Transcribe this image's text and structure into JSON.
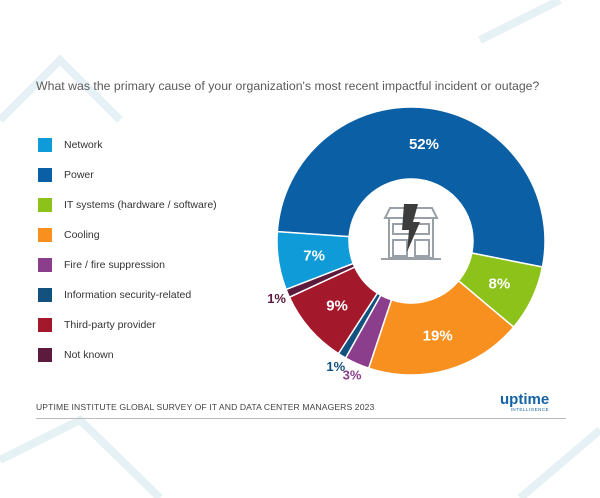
{
  "chart_data": {
    "type": "pie",
    "title": "What was the primary cause of your organization's most recent impactful incident or outage?",
    "categories": [
      "Power",
      "IT systems (hardware / software)",
      "Cooling",
      "Fire / fire suppression",
      "Information security-related",
      "Third-party provider",
      "Not known",
      "Network"
    ],
    "values": [
      52,
      8,
      19,
      3,
      1,
      9,
      1,
      7
    ],
    "labels": [
      "52%",
      "8%",
      "19%",
      "3%",
      "1%",
      "9%",
      "1%",
      "7%"
    ],
    "colors": [
      "#0b5fa5",
      "#8cc21a",
      "#f7901e",
      "#8a3e8c",
      "#13517f",
      "#a3182b",
      "#5c1a3c",
      "#0e9bd8"
    ],
    "legend": [
      {
        "label": "Network",
        "color": "#0e9bd8"
      },
      {
        "label": "Power",
        "color": "#0b5fa5"
      },
      {
        "label": "IT systems (hardware / software)",
        "color": "#8cc21a"
      },
      {
        "label": "Cooling",
        "color": "#f7901e"
      },
      {
        "label": "Fire / fire suppression",
        "color": "#8a3e8c"
      },
      {
        "label": "Information security-related",
        "color": "#13517f"
      },
      {
        "label": "Third-party provider",
        "color": "#a3182b"
      },
      {
        "label": "Not known",
        "color": "#5c1a3c"
      }
    ],
    "legend_placement": "left"
  },
  "footer": "UPTIME INSTITUTE GLOBAL SURVEY OF IT AND DATA CENTER MANAGERS 2023",
  "logo": {
    "word": "uptime",
    "sub": "INTELLIGENCE"
  }
}
